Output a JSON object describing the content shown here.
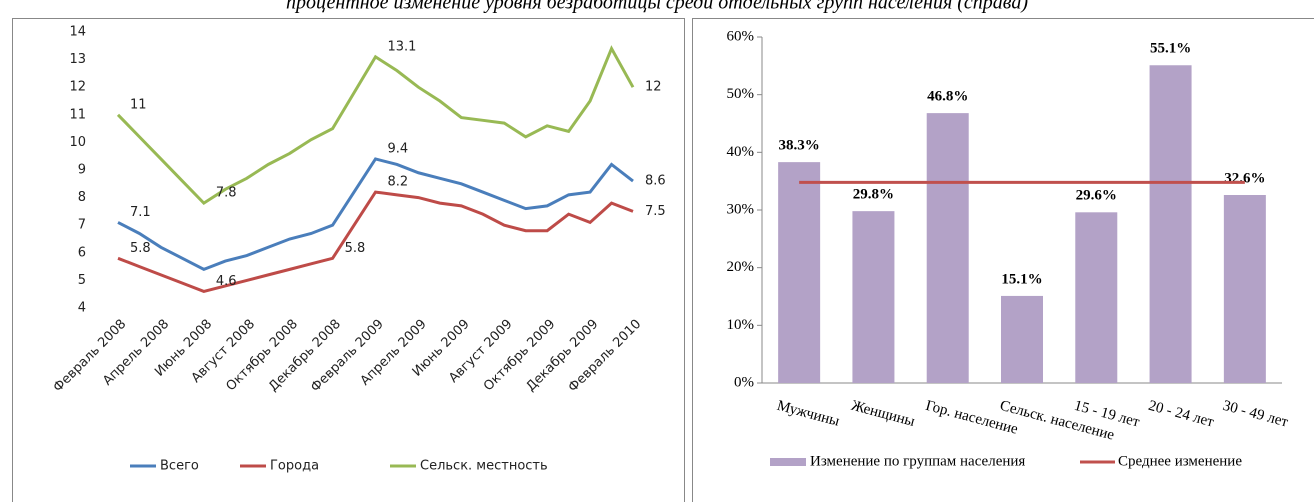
{
  "caption": "процентное изменение уровня безработицы среди отдельных групп населения (справа)",
  "chart_data": [
    {
      "type": "line",
      "categories": [
        "Февраль 2008",
        null,
        "Апрель 2008",
        null,
        "Июнь 2008",
        null,
        "Август 2008",
        null,
        "Октябрь 2008",
        null,
        "Декабрь 2008",
        null,
        "Февраль 2009",
        null,
        "Апрель 2009",
        null,
        "Июнь 2009",
        null,
        "Август 2009",
        null,
        "Октябрь 2009",
        null,
        "Декабрь 2009",
        null,
        "Февраль 2010"
      ],
      "ylim": [
        4,
        14
      ],
      "yticks": [
        4,
        5,
        6,
        7,
        8,
        9,
        10,
        11,
        12,
        13,
        14
      ],
      "legend": "bottom",
      "series": [
        {
          "name": "Всего",
          "color": "#4a7ebb",
          "values": [
            7.1,
            6.7,
            6.2,
            5.8,
            5.4,
            5.7,
            5.9,
            6.2,
            6.5,
            6.7,
            7.0,
            8.2,
            9.4,
            9.2,
            8.9,
            8.7,
            8.5,
            8.2,
            7.9,
            7.6,
            7.7,
            8.1,
            8.2,
            9.2,
            8.6
          ],
          "value_labels": [
            "7.1",
            null,
            null,
            null,
            null,
            null,
            null,
            null,
            null,
            null,
            null,
            null,
            "9.4",
            null,
            null,
            null,
            null,
            null,
            null,
            null,
            null,
            null,
            null,
            null,
            "8.6"
          ]
        },
        {
          "name": "Города",
          "color": "#be4b48",
          "values": [
            5.8,
            5.5,
            5.2,
            4.9,
            4.6,
            4.8,
            5.0,
            5.2,
            5.4,
            5.6,
            5.8,
            7.0,
            8.2,
            8.1,
            8.0,
            7.8,
            7.7,
            7.4,
            7.0,
            6.8,
            6.8,
            7.4,
            7.1,
            7.8,
            7.5
          ],
          "value_labels": [
            "5.8",
            null,
            null,
            null,
            "4.6",
            null,
            null,
            null,
            null,
            null,
            "5.8",
            null,
            "8.2",
            null,
            null,
            null,
            null,
            null,
            null,
            null,
            null,
            null,
            null,
            null,
            "7.5"
          ]
        },
        {
          "name": "Сельск. местность",
          "color": "#98b954",
          "values": [
            11,
            10.2,
            9.4,
            8.6,
            7.8,
            8.3,
            8.7,
            9.2,
            9.6,
            10.1,
            10.5,
            11.8,
            13.1,
            12.6,
            12.0,
            11.5,
            10.9,
            10.8,
            10.7,
            10.2,
            10.6,
            10.4,
            11.5,
            13.4,
            12
          ],
          "value_labels": [
            "11",
            null,
            null,
            null,
            "7.8",
            null,
            null,
            null,
            null,
            null,
            null,
            null,
            "13.1",
            null,
            null,
            null,
            null,
            null,
            null,
            null,
            null,
            null,
            null,
            null,
            "12"
          ]
        }
      ]
    },
    {
      "type": "bar",
      "categories": [
        "Мужчины",
        "Женщины",
        "Гор. население",
        "Сельск. население",
        "15 - 19 лет",
        "20 - 24 лет",
        "30 - 49 лет"
      ],
      "ylim": [
        0,
        60
      ],
      "yticks": [
        {
          "value": 0,
          "label": "0%"
        },
        {
          "value": 10,
          "label": "10%"
        },
        {
          "value": 20,
          "label": "20%"
        },
        {
          "value": 30,
          "label": "30%"
        },
        {
          "value": 40,
          "label": "40%"
        },
        {
          "value": 50,
          "label": "50%"
        },
        {
          "value": 60,
          "label": "60%"
        }
      ],
      "legend": "bottom",
      "series": [
        {
          "name": "Изменение по группам населения",
          "color": "#b3a2c7",
          "values": [
            38.3,
            29.8,
            46.8,
            15.1,
            29.6,
            55.1,
            32.6
          ],
          "value_labels": [
            "38.3%",
            "29.8%",
            "46.8%",
            "15.1%",
            "29.6%",
            "55.1%",
            "32.6%"
          ]
        },
        {
          "name": "Среднее изменение",
          "color": "#c0504d",
          "type": "line",
          "values": [
            34.8,
            34.8,
            34.8,
            34.8,
            34.8,
            34.8,
            34.8
          ]
        }
      ]
    }
  ]
}
